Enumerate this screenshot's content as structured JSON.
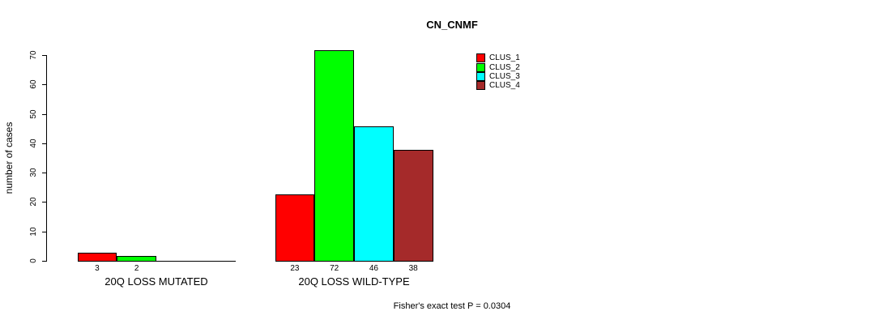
{
  "title": "CN_CNMF",
  "footnote": "Fisher's exact test P = 0.0304",
  "y_axis": {
    "label": "number of cases",
    "ticks": [
      "0",
      "10",
      "20",
      "30",
      "40",
      "50",
      "60",
      "70"
    ]
  },
  "chart_data": {
    "type": "bar",
    "title": "CN_CNMF",
    "xlabel": "",
    "ylabel": "number of cases",
    "ylim": [
      0,
      70
    ],
    "yticks": [
      0,
      10,
      20,
      30,
      40,
      50,
      60,
      70
    ],
    "grid": false,
    "legend_position": "top-right",
    "categories": [
      "20Q LOSS MUTATED",
      "20Q LOSS WILD-TYPE"
    ],
    "series": [
      {
        "name": "CLUS_1",
        "color": "#FF0000",
        "values": [
          3,
          23
        ]
      },
      {
        "name": "CLUS_2",
        "color": "#00FF00",
        "values": [
          2,
          72
        ]
      },
      {
        "name": "CLUS_3",
        "color": "#00FFFF",
        "values": [
          0,
          46
        ]
      },
      {
        "name": "CLUS_4",
        "color": "#A52A2A",
        "values": [
          0,
          38
        ]
      }
    ],
    "bar_value_labels": [
      [
        "3",
        "2",
        "",
        ""
      ],
      [
        "23",
        "72",
        "46",
        "38"
      ]
    ],
    "annotation": "Fisher's exact test P = 0.0304"
  }
}
